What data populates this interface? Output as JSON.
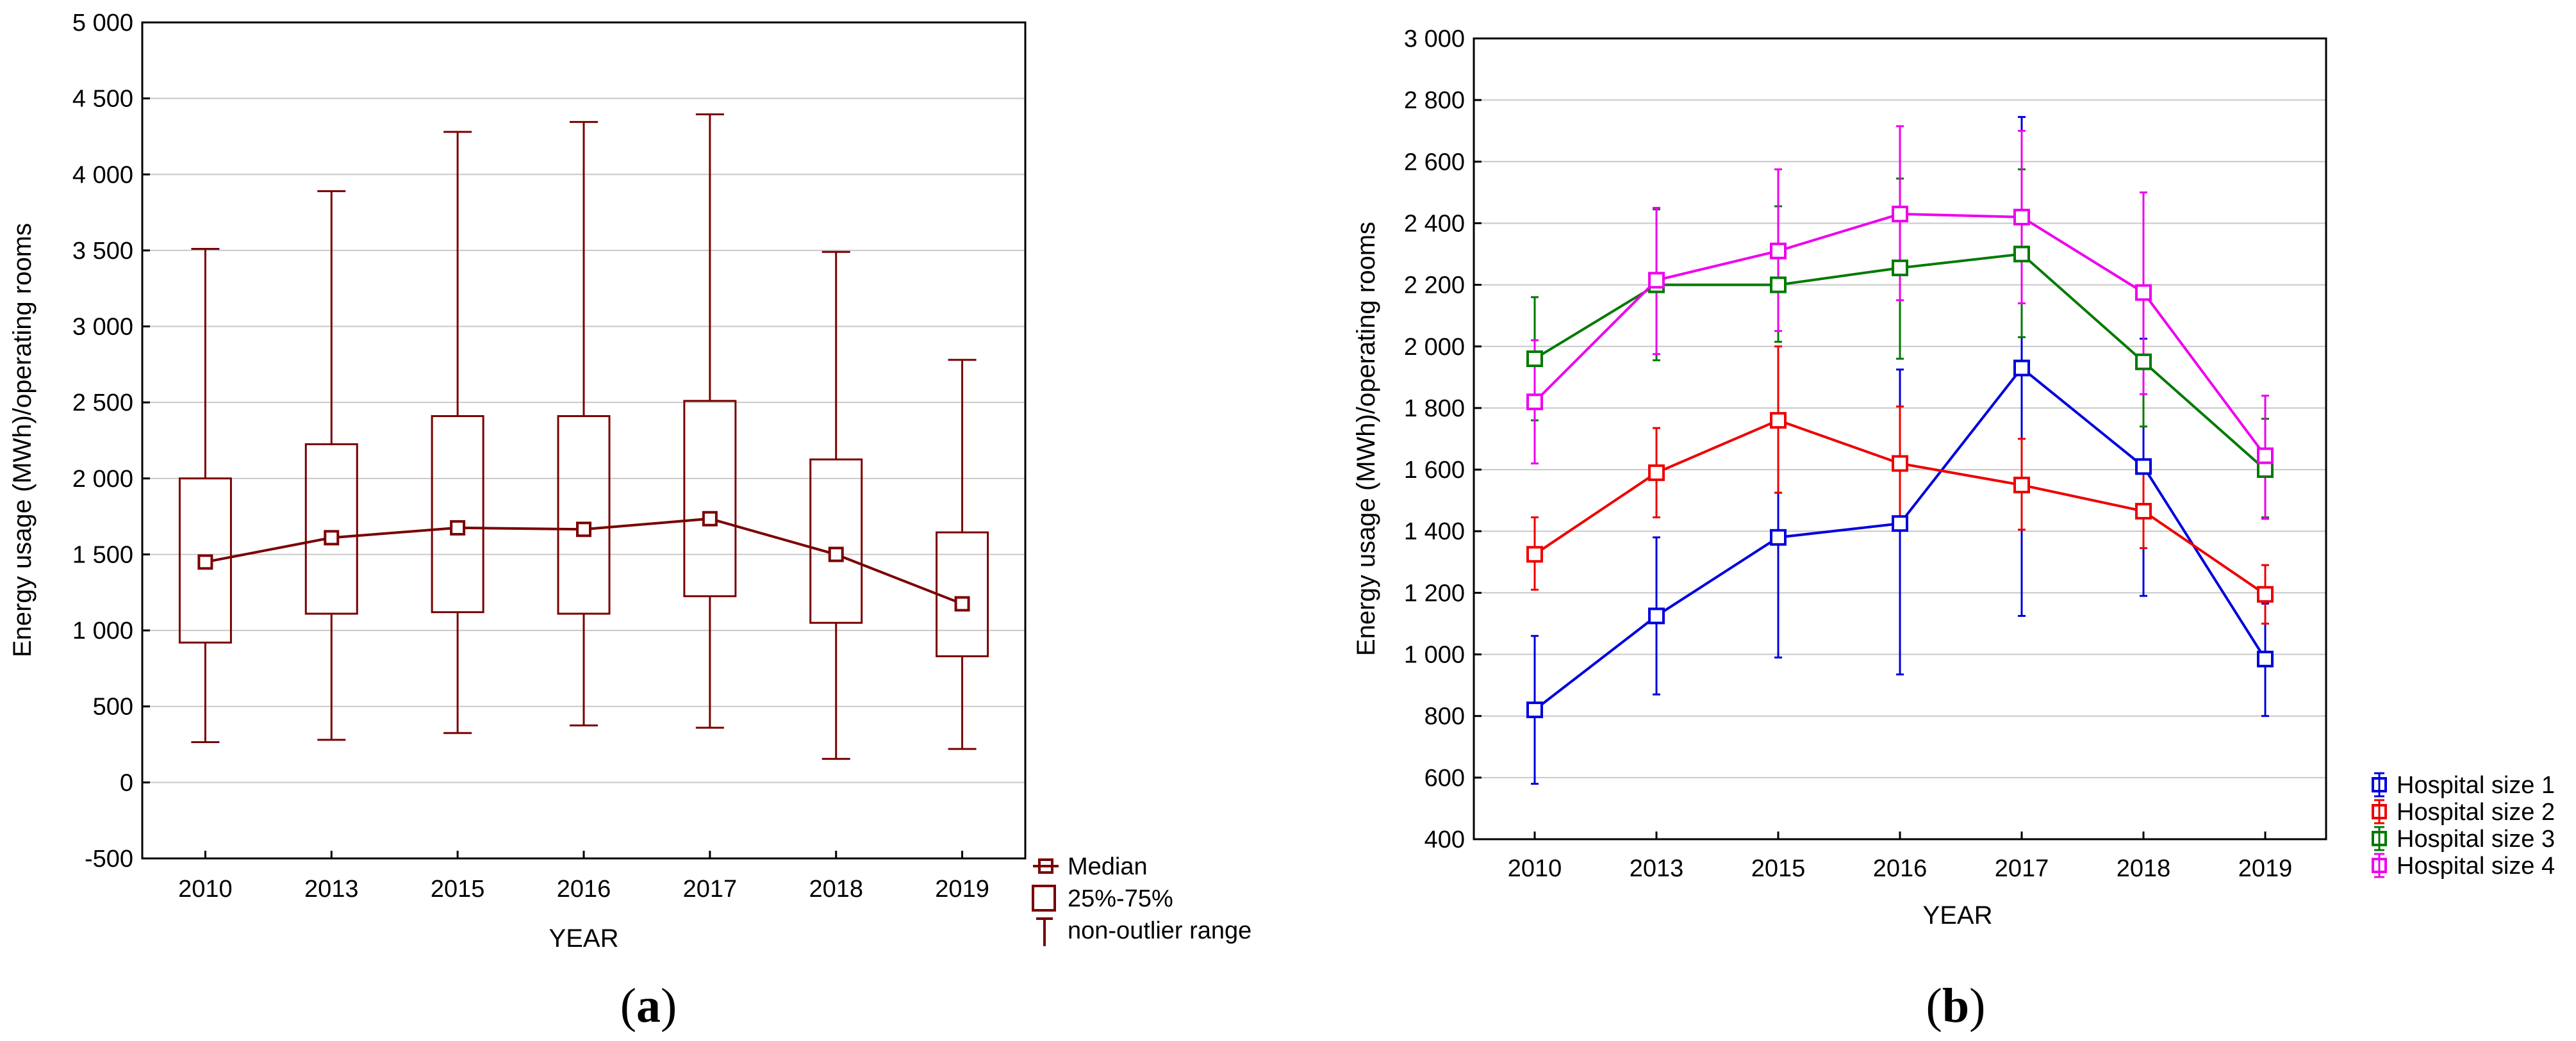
{
  "chart_data": [
    {
      "id": "a",
      "type": "box",
      "caption": "a",
      "xlabel": "YEAR",
      "ylabel": "Energy usage (MWh)/operating rooms",
      "ylim": [
        -500,
        5000
      ],
      "yticks": [
        -500,
        0,
        500,
        1000,
        1500,
        2000,
        2500,
        3000,
        3500,
        4000,
        4500,
        5000
      ],
      "ytick_labels": [
        "-500",
        "0",
        "500",
        "1 000",
        "1 500",
        "2 000",
        "2 500",
        "3 000",
        "3 500",
        "4 000",
        "4 500",
        "5 000"
      ],
      "grid": true,
      "categories": [
        "2010",
        "2013",
        "2015",
        "2016",
        "2017",
        "2018",
        "2019"
      ],
      "median": [
        1450,
        1610,
        1675,
        1665,
        1735,
        1500,
        1175
      ],
      "q1": [
        920,
        1110,
        1120,
        1110,
        1225,
        1050,
        830
      ],
      "q3": [
        2000,
        2225,
        2410,
        2410,
        2510,
        2125,
        1645
      ],
      "whisker_low": [
        265,
        280,
        325,
        375,
        360,
        155,
        220
      ],
      "whisker_high": [
        3510,
        3890,
        4280,
        4345,
        4395,
        3490,
        2780
      ],
      "color": "#7a0000",
      "legend": {
        "position": "bottom-right-outside",
        "entries": [
          "Median",
          "25%-75%",
          "non-outlier range"
        ]
      }
    },
    {
      "id": "b",
      "type": "line",
      "caption": "b",
      "xlabel": "YEAR",
      "ylabel": "Energy usage (MWh)/operating rooms",
      "ylim": [
        400,
        3000
      ],
      "yticks": [
        400,
        600,
        800,
        1000,
        1200,
        1400,
        1600,
        1800,
        2000,
        2200,
        2400,
        2600,
        2800,
        3000
      ],
      "ytick_labels": [
        "400",
        "600",
        "800",
        "1 000",
        "1 200",
        "1 400",
        "1 600",
        "1 800",
        "2 000",
        "2 200",
        "2 400",
        "2 600",
        "2 800",
        "3 000"
      ],
      "grid": true,
      "categories": [
        "2010",
        "2013",
        "2015",
        "2016",
        "2017",
        "2018",
        "2019"
      ],
      "series": [
        {
          "name": "Hospital size 1",
          "color": "#0000dd",
          "values": [
            820,
            1125,
            1380,
            1425,
            1930,
            1610,
            985
          ],
          "err_low": [
            580,
            870,
            990,
            935,
            1125,
            1190,
            800
          ],
          "err_high": [
            1060,
            1380,
            1525,
            1925,
            2745,
            2025,
            1165
          ]
        },
        {
          "name": "Hospital size 2",
          "color": "#ee0000",
          "values": [
            1325,
            1590,
            1760,
            1620,
            1550,
            1465,
            1195
          ],
          "err_low": [
            1210,
            1445,
            1525,
            1430,
            1405,
            1345,
            1100
          ],
          "err_high": [
            1445,
            1735,
            2000,
            1805,
            1700,
            1590,
            1290
          ]
        },
        {
          "name": "Hospital size 3",
          "color": "#007a00",
          "values": [
            1960,
            2200,
            2200,
            2255,
            2300,
            1950,
            1600
          ],
          "err_low": [
            1760,
            1955,
            2015,
            1960,
            2030,
            1740,
            1445
          ],
          "err_high": [
            2160,
            2445,
            2455,
            2545,
            2575,
            2170,
            1765
          ]
        },
        {
          "name": "Hospital size 4",
          "color": "#ee00ee",
          "values": [
            1820,
            2215,
            2310,
            2430,
            2420,
            2175,
            1645
          ],
          "err_low": [
            1620,
            1975,
            2050,
            2150,
            2140,
            1845,
            1440
          ],
          "err_high": [
            2020,
            2450,
            2575,
            2715,
            2700,
            2500,
            1840
          ]
        }
      ],
      "legend": {
        "position": "bottom-right-outside"
      }
    }
  ]
}
